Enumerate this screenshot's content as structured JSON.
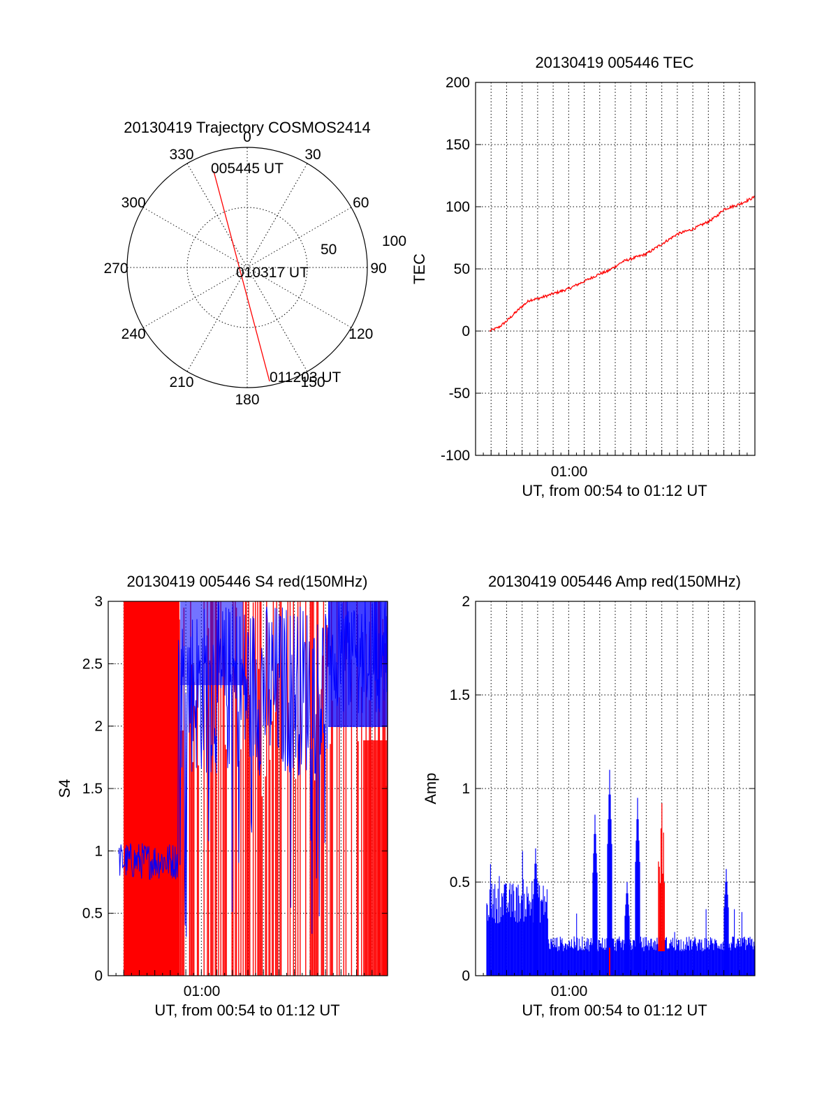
{
  "colors": {
    "red": "#ff0000",
    "blue": "#0000ff",
    "axis": "#000000",
    "background": "#ffffff"
  },
  "chart_data": [
    {
      "type": "polar",
      "title": "20130419 Trajectory COSMOS2414",
      "azimuth_ticks": [
        "0",
        "30",
        "60",
        "90",
        "120",
        "150",
        "180",
        "210",
        "240",
        "270",
        "300",
        "330"
      ],
      "radial_ticks": [
        "50",
        "100"
      ],
      "trajectory": {
        "points": [
          {
            "azimuth": 345,
            "elevation": 10,
            "label": "005445 UT"
          },
          {
            "azimuth": 90,
            "elevation": 90,
            "label": "010317 UT"
          },
          {
            "azimuth": 170,
            "elevation": 3,
            "label": "011203 UT"
          }
        ]
      }
    },
    {
      "type": "line",
      "title": "20130419 005446 TEC",
      "ylabel": "TEC",
      "xlabel": "UT, from 00:54 to 01:12 UT",
      "ylim": [
        -100,
        200
      ],
      "yticks": [
        "-100",
        "-50",
        "0",
        "50",
        "100",
        "150",
        "200"
      ],
      "x_range_minutes": [
        54,
        72
      ],
      "x_tick_label": "01:00",
      "series": [
        {
          "color": "red",
          "x": [
            54.9,
            55.5,
            56,
            56.5,
            57,
            57.5,
            58,
            58.5,
            59,
            59.5,
            60,
            60.5,
            61,
            61.5,
            62,
            62.5,
            63,
            63.5,
            64,
            64.5,
            65,
            65.5,
            66,
            66.5,
            67,
            67.5,
            68,
            68.5,
            69,
            69.5,
            70,
            70.5,
            71,
            71.5,
            72
          ],
          "values": [
            0,
            3,
            8,
            14,
            20,
            25,
            26,
            28,
            30,
            32,
            34,
            37,
            40,
            43,
            46,
            48,
            52,
            56,
            58,
            60,
            62,
            66,
            70,
            74,
            78,
            80,
            82,
            85,
            88,
            92,
            98,
            100,
            102,
            105,
            108
          ]
        }
      ]
    },
    {
      "type": "line",
      "title": "20130419 005446 S4 red(150MHz)",
      "ylabel": "S4",
      "xlabel": "UT, from 00:54 to 01:12 UT",
      "ylim": [
        0,
        3
      ],
      "yticks": [
        "0",
        "0.5",
        "1",
        "1.5",
        "2",
        "2.5",
        "3"
      ],
      "x_range_minutes": [
        54,
        72
      ],
      "x_tick_label": "01:00",
      "series": [
        {
          "color": "red",
          "description_values": "saturated noise 0–3 across most of the interval"
        },
        {
          "color": "blue",
          "description_values": "≈0.9 from 00:54 to 00:58, then 1.3–3 with dips"
        }
      ]
    },
    {
      "type": "line",
      "title": "20130419 005446 Amp red(150MHz)",
      "ylabel": "Amp",
      "xlabel": "UT, from 00:54 to 01:12 UT",
      "ylim": [
        0,
        2
      ],
      "yticks": [
        "0",
        "0.5",
        "1",
        "1.5",
        "2"
      ],
      "x_range_minutes": [
        54,
        72
      ],
      "x_tick_label": "01:00",
      "series": [
        {
          "color": "blue",
          "description_values": "≈0.3–0.5 until 00:58, ≈0.15 after with spikes to 1.1 near 01:03"
        },
        {
          "color": "red",
          "description_values": "spike ≈0.95 near 01:06"
        }
      ]
    }
  ]
}
